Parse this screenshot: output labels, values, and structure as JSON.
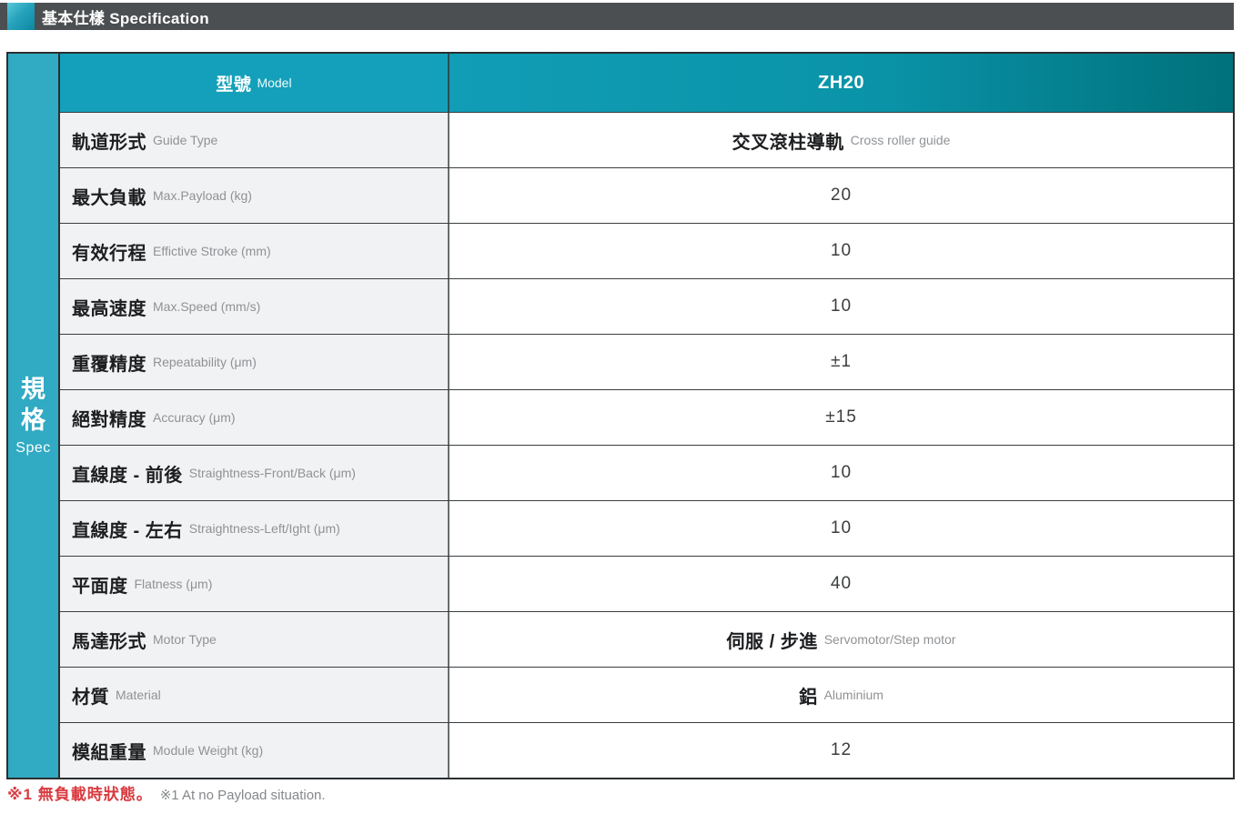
{
  "section": {
    "title": "基本仕樣 Specification"
  },
  "side_label": {
    "line1": "規",
    "line2": "格",
    "sub": "Spec"
  },
  "table": {
    "header": {
      "label_zh": "型號",
      "label_en": "Model",
      "model": "ZH20"
    },
    "rows": [
      {
        "label_zh": "軌道形式",
        "label_en": "Guide Type",
        "value_main": "交叉滾柱導軌",
        "value_sub": "Cross roller guide"
      },
      {
        "label_zh": "最大負載",
        "label_en": "Max.Payload (kg)",
        "value_main": "20",
        "value_sub": ""
      },
      {
        "label_zh": "有效行程",
        "label_en": "Effictive Stroke (mm)",
        "value_main": "10",
        "value_sub": ""
      },
      {
        "label_zh": "最高速度",
        "label_en": "Max.Speed (mm/s)",
        "value_main": "10",
        "value_sub": ""
      },
      {
        "label_zh": "重覆精度",
        "label_en": "Repeatability  (μm)",
        "value_main": "±1",
        "value_sub": ""
      },
      {
        "label_zh": "絕對精度",
        "label_en": "Accuracy (μm)",
        "value_main": "±15",
        "value_sub": ""
      },
      {
        "label_zh": "直線度 - 前後",
        "label_en": "Straightness-Front/Back (μm)",
        "value_main": "10",
        "value_sub": ""
      },
      {
        "label_zh": "直線度 - 左右",
        "label_en": "Straightness-Left/Ight  (μm)",
        "value_main": "10",
        "value_sub": ""
      },
      {
        "label_zh": "平面度",
        "label_en": "Flatness (μm)",
        "value_main": "40",
        "value_sub": ""
      },
      {
        "label_zh": "馬達形式",
        "label_en": "Motor Type",
        "value_main": "伺服 / 步進",
        "value_sub": "Servomotor/Step motor"
      },
      {
        "label_zh": "材質",
        "label_en": "Material",
        "value_main": "鋁",
        "value_sub": "Aluminium"
      },
      {
        "label_zh": "模組重量",
        "label_en": "Module Weight (kg)",
        "value_main": "12",
        "value_sub": ""
      }
    ]
  },
  "footnote": {
    "zh": "※1 無負載時狀態。",
    "en": "※1 At no Payload situation."
  },
  "colors": {
    "titlebar_bg": "#4b4f51",
    "accent_teal": "#31aac3",
    "header_teal": "#14a0ba",
    "header_gradient_end": "#00717c",
    "label_cell_bg": "#f1f2f3",
    "note_red": "#d93a40"
  }
}
